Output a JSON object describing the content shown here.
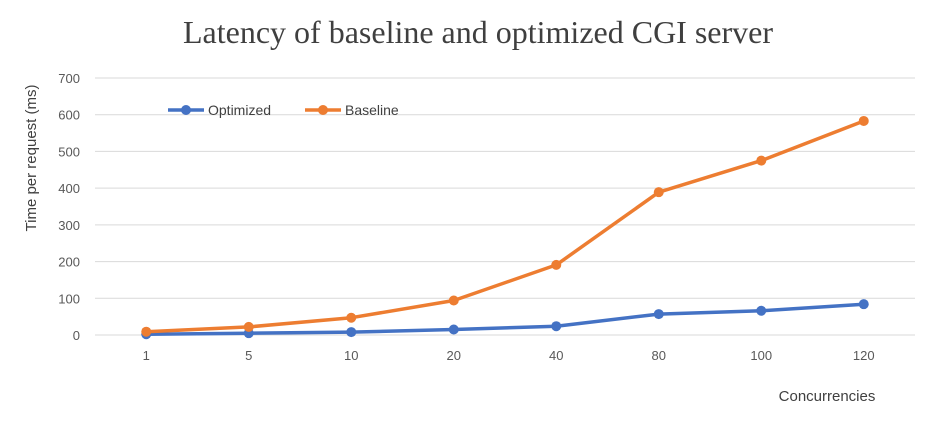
{
  "chart_data": {
    "type": "line",
    "title": "Latency of baseline and optimized CGI server",
    "xlabel": "Concurrencies",
    "ylabel": "Time per request (ms)",
    "categories": [
      "1",
      "5",
      "10",
      "20",
      "40",
      "80",
      "100",
      "120"
    ],
    "ylim": [
      0,
      700
    ],
    "yticks": [
      0,
      100,
      200,
      300,
      400,
      500,
      600,
      700
    ],
    "grid": true,
    "legend_position": "top-left",
    "series": [
      {
        "name": "Optimized",
        "color": "#4472c4",
        "values": [
          2,
          5,
          8,
          15,
          24,
          57,
          66,
          84
        ]
      },
      {
        "name": "Baseline",
        "color": "#ed7d31",
        "values": [
          9,
          22,
          47,
          94,
          191,
          389,
          475,
          583
        ]
      }
    ]
  }
}
